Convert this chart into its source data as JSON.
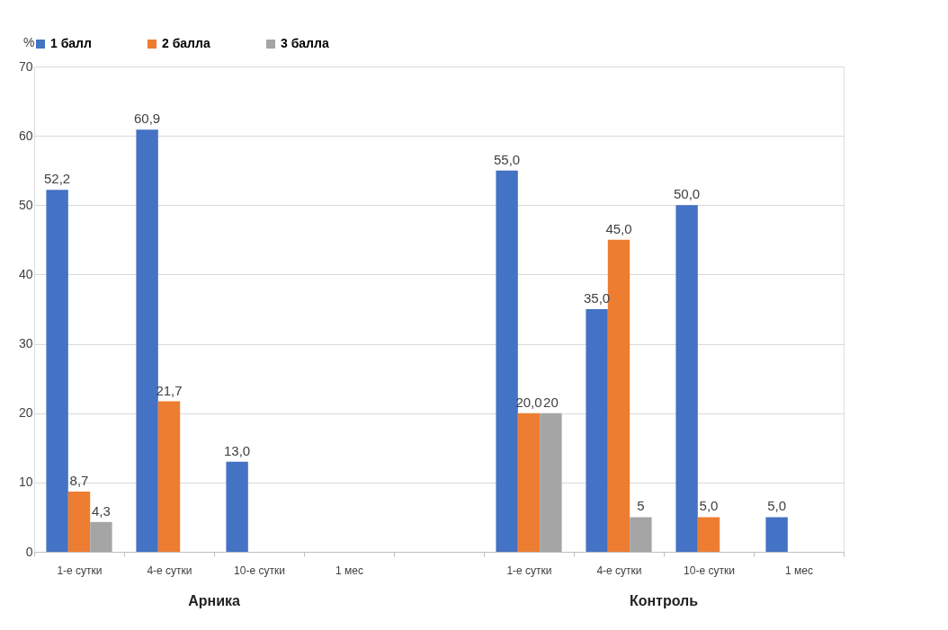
{
  "chart_data": {
    "type": "bar",
    "ylabel": "%",
    "categories": [
      "1-е сутки",
      "4-е сутки",
      "10-е сутки",
      "1 мес",
      null,
      "1-е сутки",
      "4-е сутки",
      "10-е сутки",
      "1 мес"
    ],
    "series": [
      {
        "name": "1 балл",
        "color": "#4472c4",
        "values": [
          52.2,
          60.9,
          13.0,
          null,
          null,
          55.0,
          35.0,
          50.0,
          5.0
        ],
        "value_labels": [
          "52,2",
          "60,9",
          "13,0",
          null,
          null,
          "55,0",
          "35,0",
          "50,0",
          "5,0"
        ]
      },
      {
        "name": "2 балла",
        "color": "#ed7d31",
        "values": [
          8.7,
          21.7,
          null,
          null,
          null,
          20.0,
          45.0,
          5.0,
          null
        ],
        "value_labels": [
          "8,7",
          "21,7",
          null,
          null,
          null,
          "20,0",
          "45,0",
          "5,0",
          null
        ]
      },
      {
        "name": "3 балла",
        "color": "#a5a5a5",
        "values": [
          4.3,
          null,
          null,
          null,
          null,
          20,
          5,
          null,
          null
        ],
        "value_labels": [
          "4,3",
          null,
          null,
          null,
          null,
          "20",
          "5",
          null,
          null
        ]
      }
    ],
    "ylim": [
      0,
      70
    ],
    "yticks": [
      0,
      10,
      20,
      30,
      40,
      50,
      60,
      70
    ],
    "grid": "y",
    "legend": "top",
    "annotations": [
      "Арника",
      "Контроль"
    ]
  }
}
